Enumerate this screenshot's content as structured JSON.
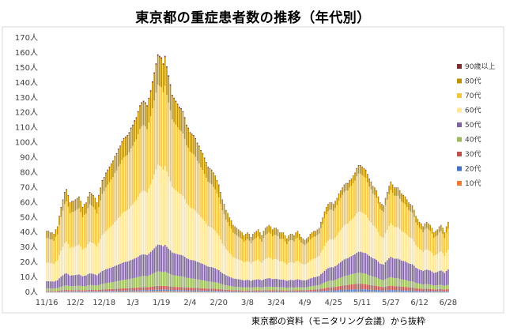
{
  "title": "東京都の重症患者数の推移（年代別）",
  "source_note": "東京都の資料（モニタリング会議）から抜粋",
  "chart_data": {
    "type": "bar",
    "stacked": true,
    "title": "東京都の重症患者数の推移（年代別）",
    "xlabel": "",
    "ylabel": "",
    "ylim": [
      0,
      170
    ],
    "y_step": 10,
    "y_unit": "人",
    "grid": false,
    "legend_position": "right",
    "x_tick_labels": [
      "11/16",
      "12/2",
      "12/18",
      "1/3",
      "1/19",
      "2/4",
      "2/20",
      "3/8",
      "3/24",
      "4/9",
      "4/25",
      "5/11",
      "5/27",
      "6/12",
      "6/28"
    ],
    "x_tick_day_index": [
      0,
      16,
      32,
      48,
      64,
      80,
      96,
      112,
      128,
      144,
      160,
      176,
      192,
      208,
      224
    ],
    "day_count": 225,
    "series": [
      {
        "name": "10代",
        "color": "#ED7D31"
      },
      {
        "name": "20代",
        "color": "#4472C4"
      },
      {
        "name": "30代",
        "color": "#C0504D"
      },
      {
        "name": "40代",
        "color": "#9BBB59"
      },
      {
        "name": "50代",
        "color": "#8064A2"
      },
      {
        "name": "60代",
        "color": "#FFE699"
      },
      {
        "name": "70代",
        "color": "#F4C542"
      },
      {
        "name": "80代",
        "color": "#BF9000"
      },
      {
        "name": "90歳以上",
        "color": "#7B2C2C"
      }
    ],
    "total_keypoints": [
      [
        0,
        41
      ],
      [
        2,
        40
      ],
      [
        4,
        39
      ],
      [
        6,
        44
      ],
      [
        8,
        57
      ],
      [
        10,
        67
      ],
      [
        11,
        69
      ],
      [
        13,
        60
      ],
      [
        16,
        62
      ],
      [
        18,
        64
      ],
      [
        20,
        57
      ],
      [
        22,
        60
      ],
      [
        24,
        67
      ],
      [
        26,
        65
      ],
      [
        28,
        60
      ],
      [
        31,
        75
      ],
      [
        34,
        82
      ],
      [
        37,
        88
      ],
      [
        40,
        96
      ],
      [
        43,
        103
      ],
      [
        45,
        105
      ],
      [
        48,
        112
      ],
      [
        50,
        117
      ],
      [
        52,
        125
      ],
      [
        54,
        128
      ],
      [
        56,
        125
      ],
      [
        58,
        135
      ],
      [
        60,
        147
      ],
      [
        62,
        159
      ],
      [
        64,
        157
      ],
      [
        65,
        153
      ],
      [
        66,
        158
      ],
      [
        67,
        151
      ],
      [
        68,
        145
      ],
      [
        70,
        132
      ],
      [
        72,
        128
      ],
      [
        74,
        124
      ],
      [
        76,
        121
      ],
      [
        78,
        112
      ],
      [
        80,
        107
      ],
      [
        82,
        105
      ],
      [
        84,
        100
      ],
      [
        86,
        95
      ],
      [
        88,
        90
      ],
      [
        90,
        84
      ],
      [
        92,
        82
      ],
      [
        94,
        78
      ],
      [
        96,
        72
      ],
      [
        98,
        62
      ],
      [
        100,
        55
      ],
      [
        102,
        50
      ],
      [
        104,
        45
      ],
      [
        106,
        43
      ],
      [
        108,
        41
      ],
      [
        110,
        38
      ],
      [
        112,
        40
      ],
      [
        114,
        37
      ],
      [
        116,
        40
      ],
      [
        118,
        42
      ],
      [
        120,
        38
      ],
      [
        122,
        43
      ],
      [
        124,
        45
      ],
      [
        126,
        42
      ],
      [
        128,
        43
      ],
      [
        130,
        40
      ],
      [
        132,
        40
      ],
      [
        134,
        36
      ],
      [
        136,
        39
      ],
      [
        138,
        38
      ],
      [
        140,
        41
      ],
      [
        142,
        37
      ],
      [
        144,
        35
      ],
      [
        146,
        37
      ],
      [
        148,
        40
      ],
      [
        150,
        41
      ],
      [
        152,
        43
      ],
      [
        154,
        50
      ],
      [
        156,
        57
      ],
      [
        158,
        60
      ],
      [
        160,
        59
      ],
      [
        162,
        63
      ],
      [
        164,
        68
      ],
      [
        166,
        72
      ],
      [
        168,
        73
      ],
      [
        170,
        76
      ],
      [
        172,
        80
      ],
      [
        174,
        85
      ],
      [
        176,
        84
      ],
      [
        178,
        82
      ],
      [
        180,
        76
      ],
      [
        182,
        71
      ],
      [
        184,
        68
      ],
      [
        186,
        60
      ],
      [
        188,
        58
      ],
      [
        190,
        67
      ],
      [
        192,
        74
      ],
      [
        194,
        70
      ],
      [
        196,
        70
      ],
      [
        198,
        66
      ],
      [
        200,
        64
      ],
      [
        202,
        60
      ],
      [
        204,
        58
      ],
      [
        206,
        51
      ],
      [
        208,
        47
      ],
      [
        210,
        44
      ],
      [
        212,
        47
      ],
      [
        214,
        45
      ],
      [
        216,
        40
      ],
      [
        218,
        42
      ],
      [
        220,
        45
      ],
      [
        222,
        40
      ],
      [
        224,
        47
      ]
    ],
    "share_keypoints": {
      "10代": [
        [
          0,
          0.005
        ],
        [
          224,
          0.005
        ]
      ],
      "20代": [
        [
          0,
          0.005
        ],
        [
          140,
          0.008
        ],
        [
          170,
          0.02
        ],
        [
          224,
          0.01
        ]
      ],
      "30代": [
        [
          0,
          0.012
        ],
        [
          140,
          0.02
        ],
        [
          170,
          0.045
        ],
        [
          224,
          0.03
        ]
      ],
      "40代": [
        [
          0,
          0.04
        ],
        [
          60,
          0.06
        ],
        [
          140,
          0.05
        ],
        [
          170,
          0.09
        ],
        [
          224,
          0.06
        ]
      ],
      "50代": [
        [
          0,
          0.12
        ],
        [
          60,
          0.11
        ],
        [
          140,
          0.13
        ],
        [
          170,
          0.16
        ],
        [
          224,
          0.22
        ]
      ],
      "60代": [
        [
          0,
          0.3
        ],
        [
          60,
          0.33
        ],
        [
          140,
          0.3
        ],
        [
          170,
          0.32
        ],
        [
          224,
          0.28
        ]
      ],
      "70代": [
        [
          0,
          0.4
        ],
        [
          60,
          0.33
        ],
        [
          140,
          0.38
        ],
        [
          170,
          0.3
        ],
        [
          224,
          0.3
        ]
      ],
      "80代": [
        [
          0,
          0.11
        ],
        [
          60,
          0.12
        ],
        [
          140,
          0.1
        ],
        [
          170,
          0.06
        ],
        [
          224,
          0.09
        ]
      ],
      "90歳以上": [
        [
          0,
          0.008
        ],
        [
          60,
          0.006
        ],
        [
          224,
          0.005
        ]
      ]
    }
  }
}
